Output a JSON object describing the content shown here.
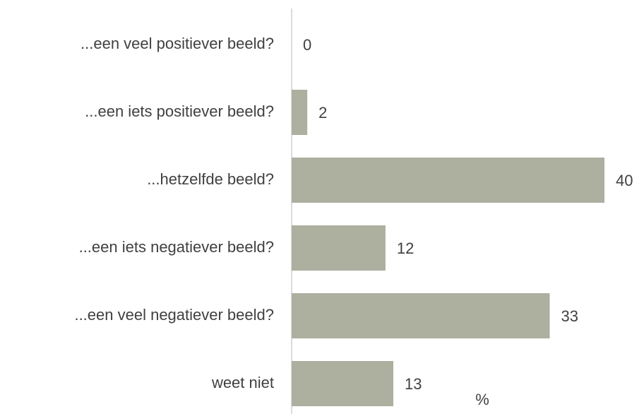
{
  "chart_data": {
    "type": "bar",
    "orientation": "horizontal",
    "categories": [
      "...een veel positiever beeld?",
      "...een iets positiever beeld?",
      "...hetzelfde beeld?",
      "...een iets negatiever beeld?",
      "...een veel negatiever beeld?",
      "weet niet"
    ],
    "values": [
      0,
      2,
      40,
      12,
      33,
      13
    ],
    "color": "#adaf9f",
    "xlabel": "%"
  }
}
